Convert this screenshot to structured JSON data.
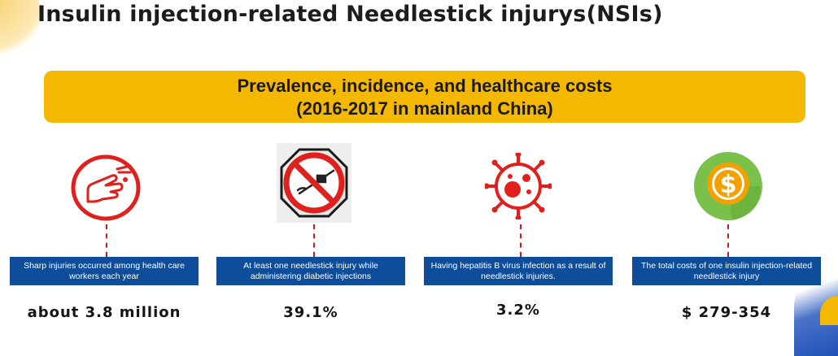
{
  "title": "Insulin injection-related Needlestick injurys(NSIs)",
  "banner": {
    "line1": "Prevalence, incidence, and healthcare costs",
    "line2": "(2016-2017 in mainland China)"
  },
  "colors": {
    "banner": "#f5b800",
    "box": "#0e4d9a",
    "accent_red": "#e0201c",
    "coin_green": "#79c14a",
    "coin_orange": "#f2a100"
  },
  "items": [
    {
      "icon": "finger-prick-icon",
      "description": "Sharp injuries occurred among health care workers  each year",
      "value": "about 3.8 million"
    },
    {
      "icon": "no-needle-icon",
      "description": "At least one needlestick injury while administering diabetic injections",
      "value": "39.1%"
    },
    {
      "icon": "virus-icon",
      "description": "Having hepatitis B virus infection as a result of needlestick injuries.",
      "value": "3.2%"
    },
    {
      "icon": "dollar-coin-icon",
      "description": "The total costs of one insulin injection-related needlestick injury",
      "value": "$ 279-354"
    }
  ]
}
